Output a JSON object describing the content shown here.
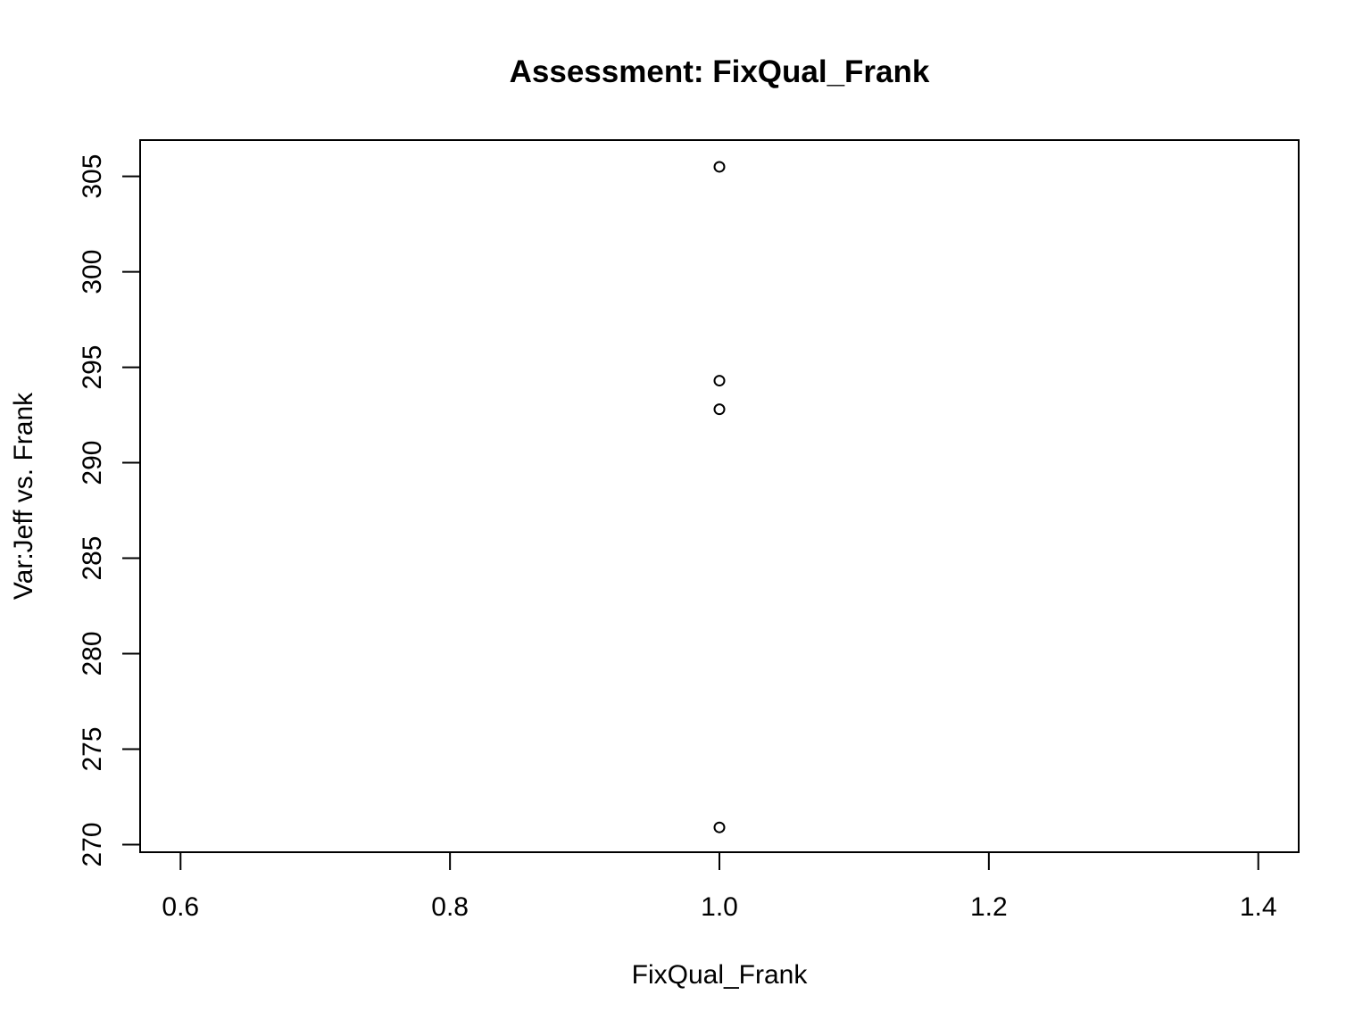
{
  "chart_data": {
    "type": "scatter",
    "title": "Assessment: FixQual_Frank",
    "xlabel": "FixQual_Frank",
    "ylabel": "Var:Jeff vs. Frank",
    "xlim": [
      0.57,
      1.43
    ],
    "ylim": [
      269.6,
      306.9
    ],
    "x_ticks": [
      "0.6",
      "0.8",
      "1.0",
      "1.2",
      "1.4"
    ],
    "y_ticks": [
      "270",
      "275",
      "280",
      "285",
      "290",
      "295",
      "300",
      "305"
    ],
    "points": [
      {
        "x": 1.0,
        "y": 305.5
      },
      {
        "x": 1.0,
        "y": 294.3
      },
      {
        "x": 1.0,
        "y": 292.8
      },
      {
        "x": 1.0,
        "y": 270.9
      }
    ],
    "marker": "open-circle",
    "grid": false,
    "colors": {
      "ink": "#000000",
      "background": "#ffffff"
    }
  }
}
